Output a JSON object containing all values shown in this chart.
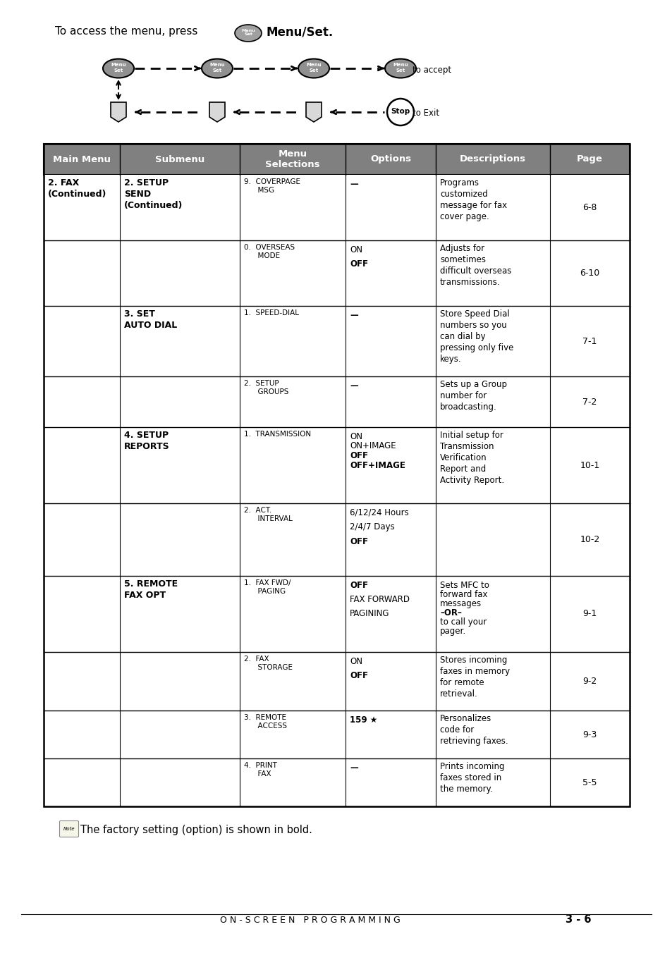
{
  "title_text": "To access the menu, press",
  "menu_set_bold": "Menu/Set.",
  "note_text": "The factory setting (option) is shown in bold.",
  "footer_text": "O N - S C R E E N   P R O G R A M M I N G",
  "footer_page": "3 - 6",
  "header_cols": [
    "Main Menu",
    "Submenu",
    "Menu\nSelections",
    "Options",
    "Descriptions",
    "Page"
  ],
  "bg_color": "#ffffff",
  "header_bg": "#808080",
  "header_fg": "#ffffff",
  "table_border": "#000000",
  "rows": [
    {
      "main": "2. FAX\n(Continued)",
      "sub": "2. SETUP\nSEND\n(Continued)",
      "menu_sel": "9.  COVERPAGE\n     MSG",
      "options": "—",
      "desc": "Programs\ncustomized\nmessage for fax\ncover page.",
      "page": "6-8"
    },
    {
      "main": "",
      "sub": "",
      "menu_sel": "0.  OVERSEAS\n     MODE",
      "options": "ON\n\nOFF",
      "desc": "Adjusts for\nsometimes\ndifficult overseas\ntransmissions.",
      "page": "6-10"
    },
    {
      "main": "",
      "sub": "3. SET\nAUTO DIAL",
      "menu_sel": "1.  SPEED-DIAL",
      "options": "—",
      "desc": "Store Speed Dial\nnumbers so you\ncan dial by\npressing only five\nkeys.",
      "page": "7-1"
    },
    {
      "main": "",
      "sub": "",
      "menu_sel": "2.  SETUP\n     GROUPS",
      "options": "—",
      "desc": "Sets up a Group\nnumber for\nbroadcasting.",
      "page": "7-2"
    },
    {
      "main": "",
      "sub": "4. SETUP\nREPORTS",
      "menu_sel": "1.  TRANSMISSION",
      "options": "ON\nON+IMAGE\nOFF\nOFF+IMAGE",
      "desc": "Initial setup for\nTransmission\nVerification\nReport and\nActivity Report.",
      "page": "10-1"
    },
    {
      "main": "",
      "sub": "",
      "menu_sel": "2.  ACT.\n     INTERVAL",
      "options": "6/12/24 Hours\n\n2/4/7 Days\n\nOFF",
      "desc": "",
      "page": "10-2"
    },
    {
      "main": "",
      "sub": "5. REMOTE\nFAX OPT",
      "menu_sel": "1.  FAX FWD/\n     PAGING",
      "options": "OFF\n\nFAX FORWARD\n\nPAGINING",
      "desc": "Sets MFC to\nforward fax\nmessages–OR–\nto call your\npager.",
      "page": "9-1"
    },
    {
      "main": "",
      "sub": "",
      "menu_sel": "2.  FAX\n     STORAGE",
      "options": "ON\n\nOFF",
      "desc": "Stores incoming\nfaxes in memory\nfor remote\nretrieval.",
      "page": "9-2"
    },
    {
      "main": "",
      "sub": "",
      "menu_sel": "3.  REMOTE\n     ACCESS",
      "options": "159 ★",
      "desc": "Personalizes\ncode for\nretrieving faxes.",
      "page": "9-3"
    },
    {
      "main": "",
      "sub": "",
      "menu_sel": "4.  PRINT\n     FAX",
      "options": "—",
      "desc": "Prints incoming\nfaxes stored in\nthe memory.",
      "page": "5-5"
    }
  ]
}
